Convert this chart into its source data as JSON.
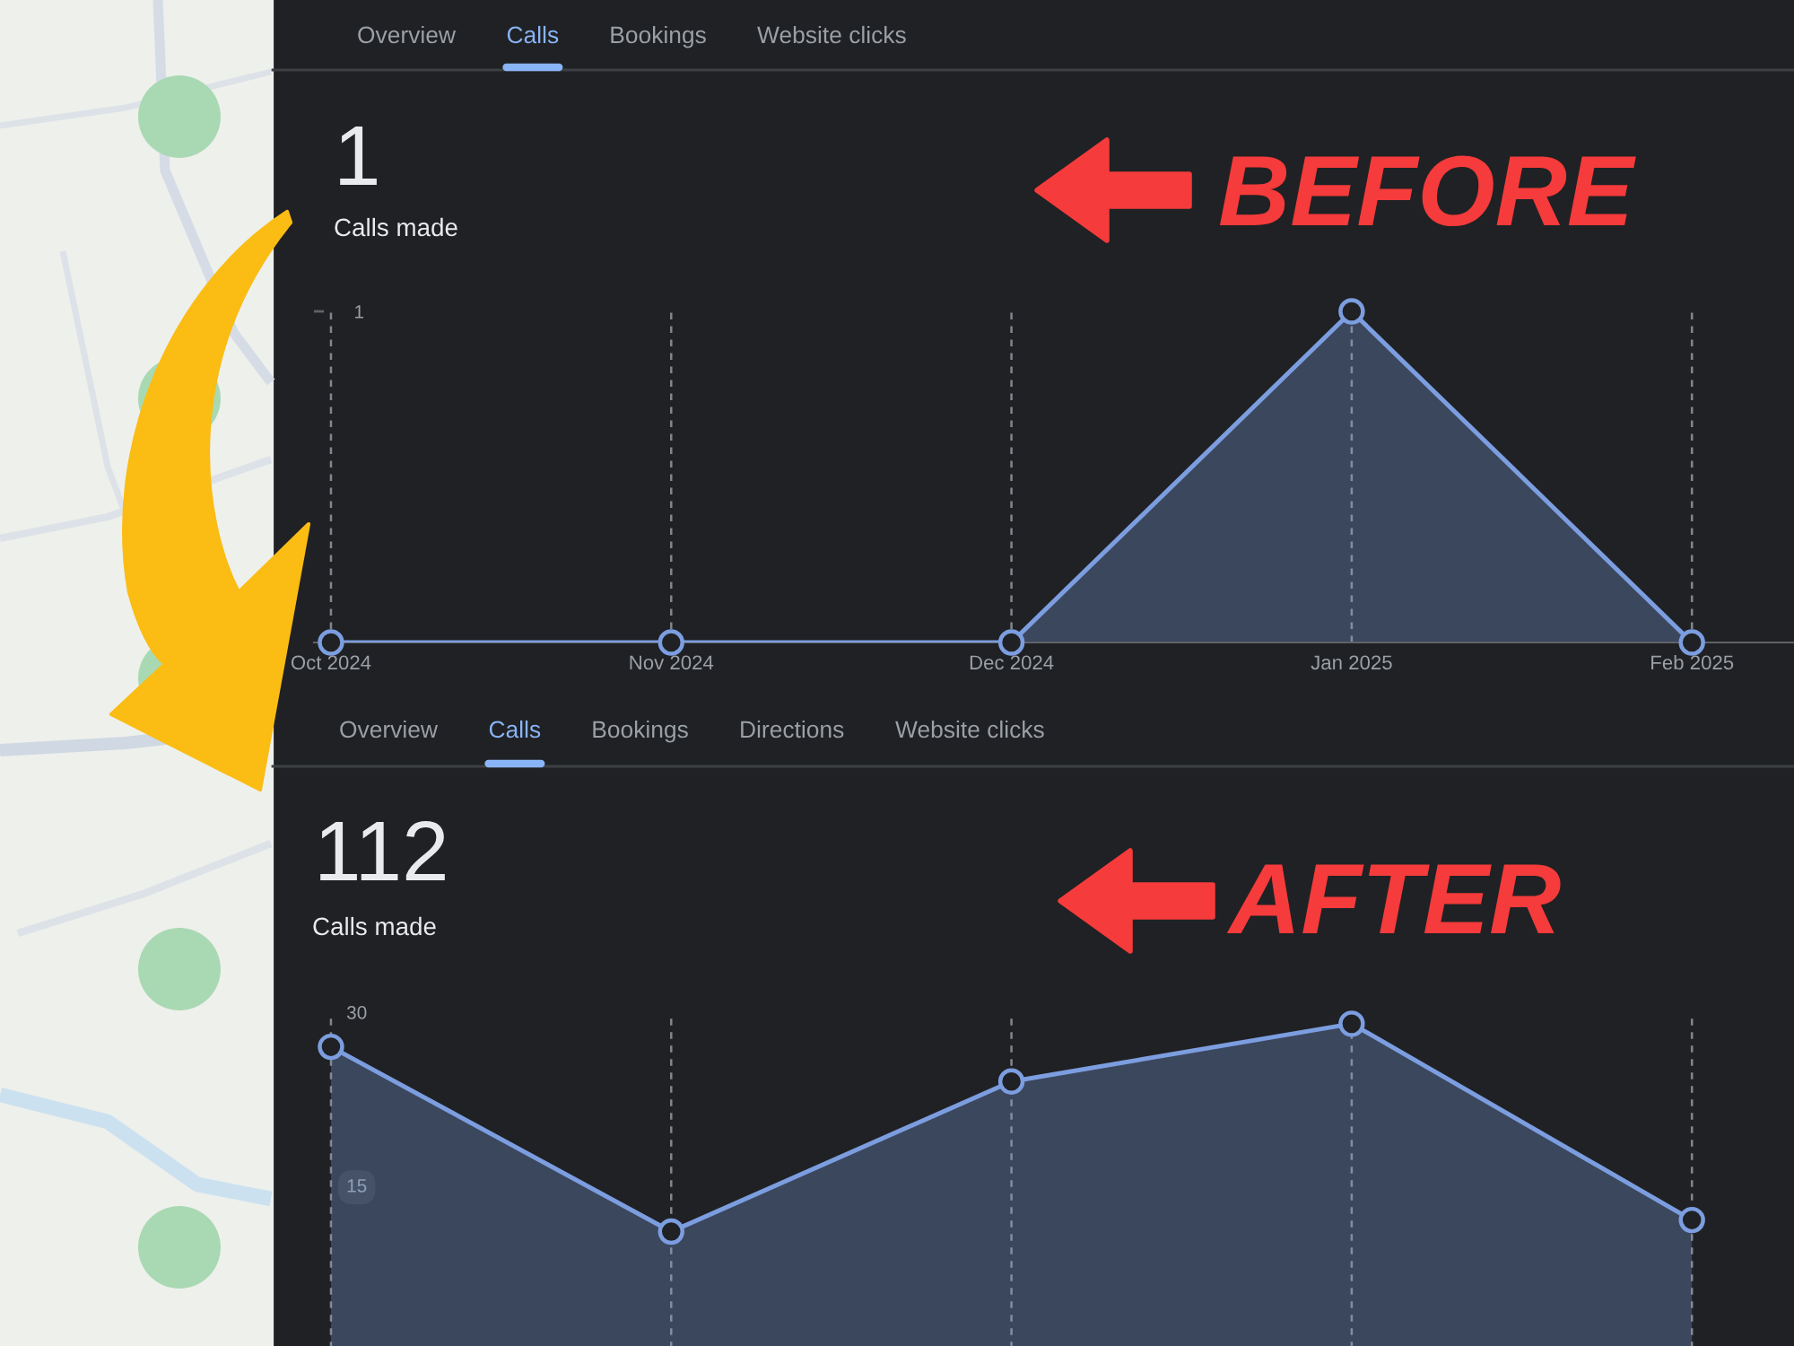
{
  "chart_data": [
    {
      "type": "area",
      "title": "1",
      "subtitle": "Calls made",
      "categories": [
        "Oct 2024",
        "Nov 2024",
        "Dec 2024",
        "Jan 2025",
        "Feb 2025"
      ],
      "series": [
        {
          "color": "#7c9ee0",
          "values": [
            0,
            0,
            0,
            1,
            0
          ]
        }
      ],
      "ylim": [
        0,
        1
      ],
      "yticks": [
        1
      ],
      "grid": "x",
      "marker": "circle",
      "annotations": [
        "Overview",
        "Calls",
        "Bookings",
        "Website clicks",
        "BEFORE"
      ]
    },
    {
      "type": "area",
      "title": "112",
      "subtitle": "Calls made",
      "categories": [
        null,
        null,
        null,
        null,
        null
      ],
      "series": [
        {
          "color": "#7c9ee0",
          "values": [
            27,
            11,
            24,
            29,
            12
          ]
        }
      ],
      "ylim": [
        0,
        30
      ],
      "yticks": [
        15,
        30
      ],
      "grid": "x",
      "marker": "circle",
      "tick_labels": "y",
      "annotations": [
        "Overview",
        "Calls",
        "Bookings",
        "Directions",
        "Website clicks",
        "AFTER"
      ]
    }
  ]
}
